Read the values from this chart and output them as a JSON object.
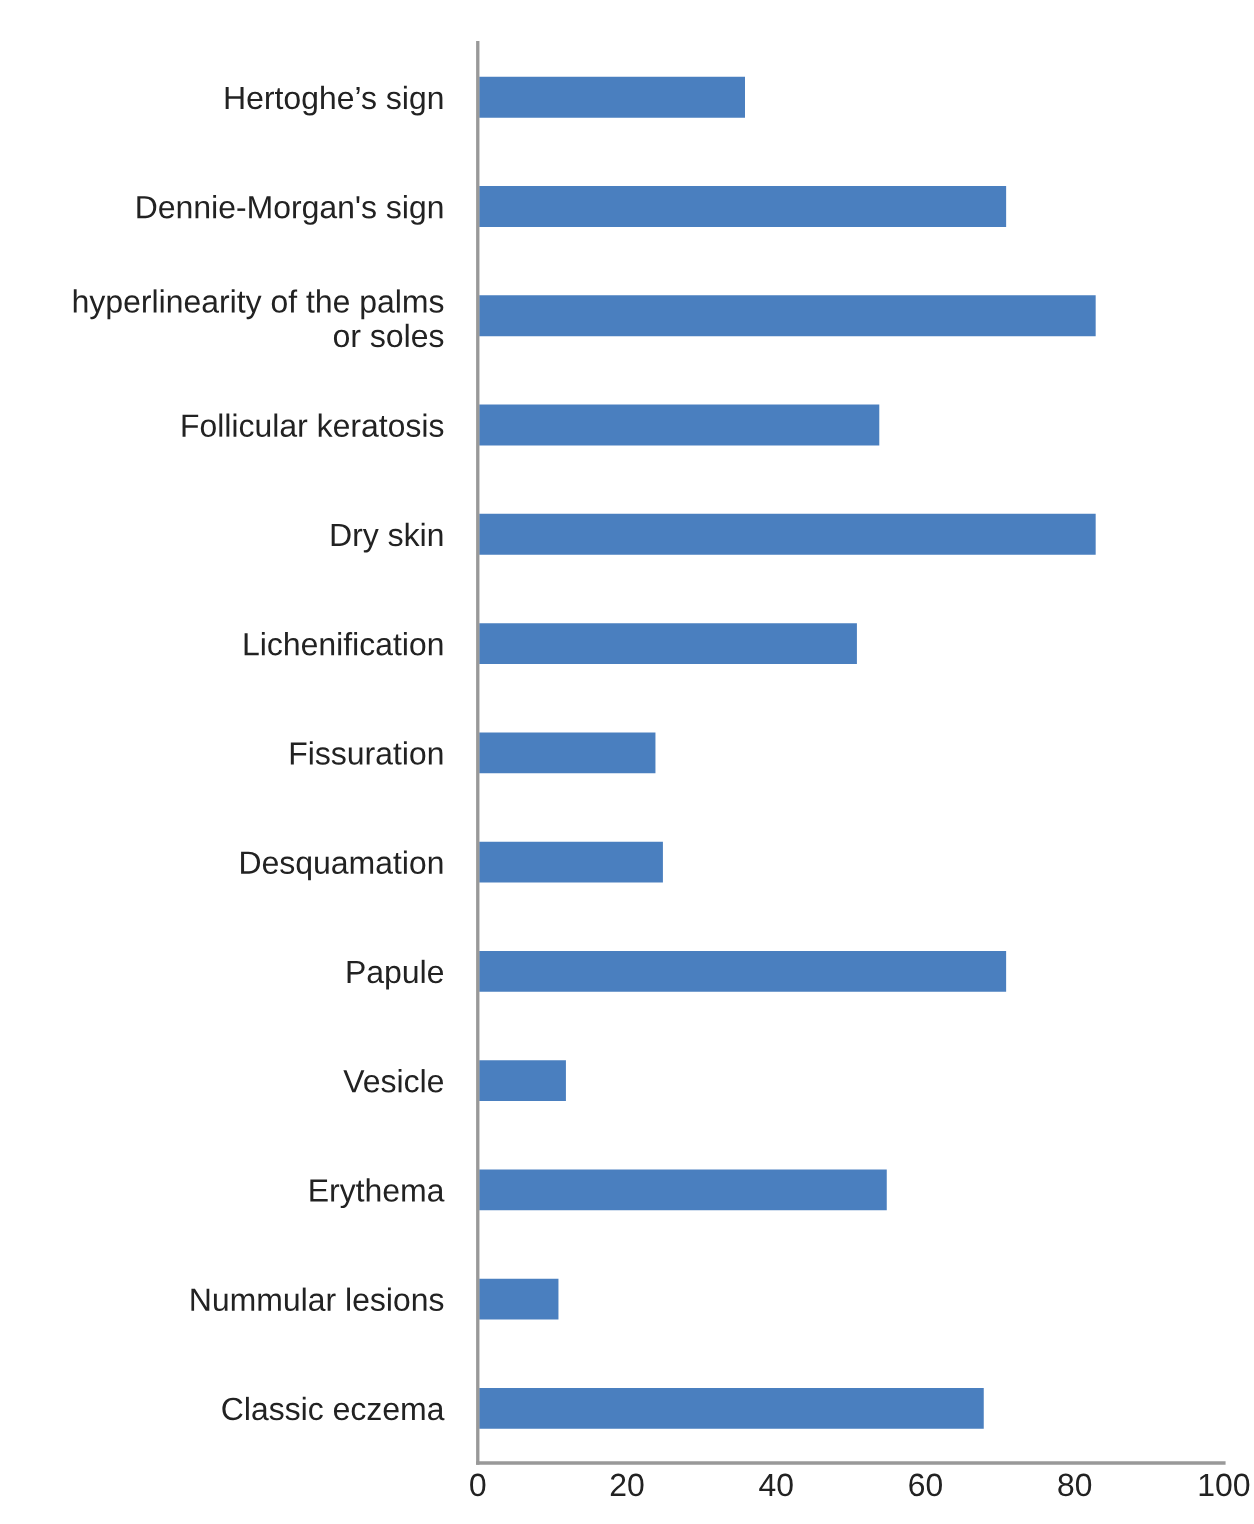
{
  "chart_data": {
    "type": "bar",
    "orientation": "horizontal",
    "categories": [
      "Hertoghe’s sign",
      "Dennie-Morgan's sign",
      "hyperlinearity of the palms\nor soles",
      "Follicular keratosis",
      "Dry skin",
      "Lichenification",
      "Fissuration",
      "Desquamation",
      "Papule",
      "Vesicle",
      "Erythema",
      "Nummular lesions",
      "Classic eczema"
    ],
    "values": [
      36,
      71,
      83,
      54,
      83,
      51,
      24,
      25,
      71,
      12,
      55,
      11,
      68
    ],
    "color": "#4a7fbf",
    "xlim": [
      0,
      100
    ],
    "xticks": [
      0,
      20,
      40,
      60,
      80,
      100
    ],
    "grid": false
  }
}
